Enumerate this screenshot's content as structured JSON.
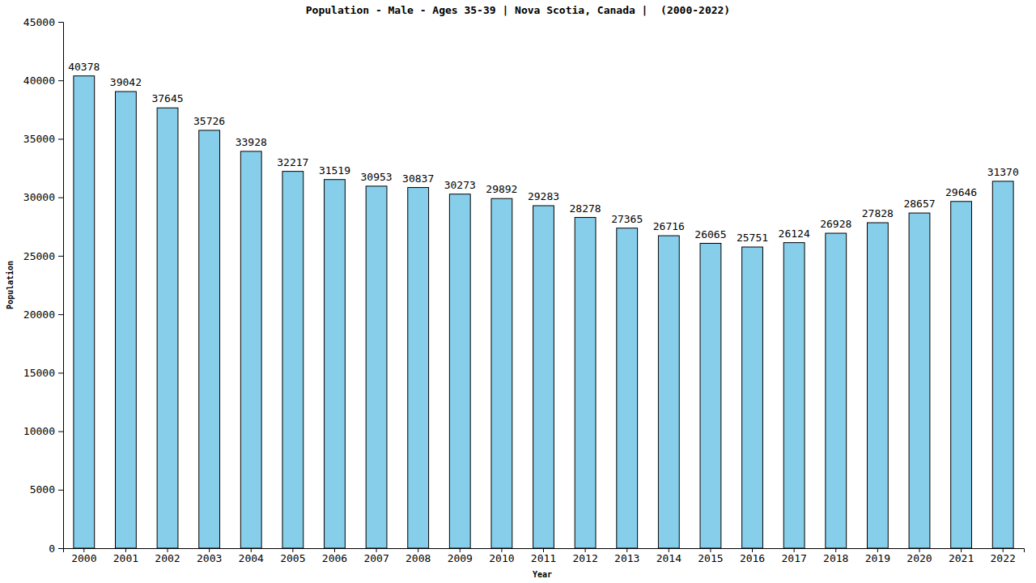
{
  "chart_data": {
    "type": "bar",
    "title": "Population - Male - Ages 35-39 | Nova Scotia, Canada |  (2000-2022)",
    "x_label": "Year",
    "y_label": "Population",
    "categories": [
      "2000",
      "2001",
      "2002",
      "2003",
      "2004",
      "2005",
      "2006",
      "2007",
      "2008",
      "2009",
      "2010",
      "2011",
      "2012",
      "2013",
      "2014",
      "2015",
      "2016",
      "2017",
      "2018",
      "2019",
      "2020",
      "2021",
      "2022"
    ],
    "values": [
      40378,
      39042,
      37645,
      35726,
      33928,
      32217,
      31519,
      30953,
      30837,
      30273,
      29892,
      29283,
      28278,
      27365,
      26716,
      26065,
      25751,
      26124,
      26928,
      27828,
      28657,
      29646,
      31370
    ],
    "color": "#87ceeb",
    "ylim": [
      0,
      45000
    ],
    "yticks": [
      0,
      5000,
      10000,
      15000,
      20000,
      25000,
      30000,
      35000,
      40000,
      45000
    ],
    "grid": false,
    "data_labels": true
  }
}
